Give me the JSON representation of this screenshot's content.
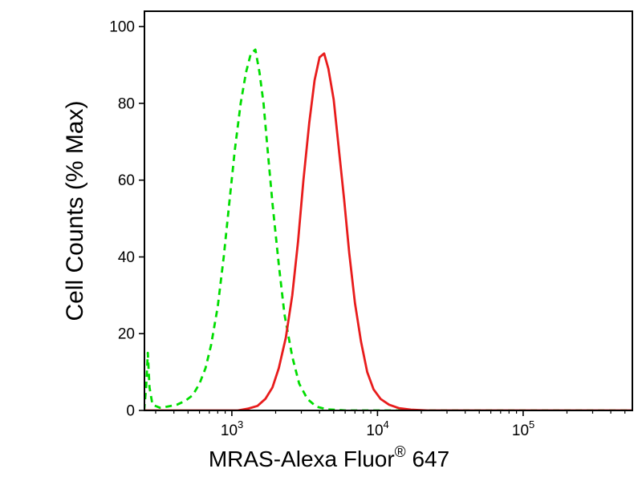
{
  "chart_data": {
    "type": "line",
    "title": "",
    "xlabel": "MRAS-Alexa Fluor® 647",
    "xlabel_parts": {
      "main": "MRAS-Alexa Fluor",
      "sup": "®",
      "suffix": " 647"
    },
    "ylabel": "Cell Counts (% Max)",
    "x_scale": "log",
    "x_range_log10": [
      2.4,
      5.75
    ],
    "ylim": [
      0,
      100
    ],
    "y_ticks": [
      0,
      20,
      40,
      60,
      80,
      100
    ],
    "x_major_ticks": [
      {
        "value": 1000,
        "base": "10",
        "exp": "3"
      },
      {
        "value": 10000,
        "base": "10",
        "exp": "4"
      },
      {
        "value": 100000,
        "base": "10",
        "exp": "5"
      }
    ],
    "grid": false,
    "legend": "none",
    "background": "#ffffff",
    "frame_color": "#000000",
    "series": [
      {
        "name": "green-dashed-curve",
        "color": "#00dd00",
        "style": "dashed",
        "dash": [
          8,
          6
        ],
        "width": 2.8,
        "peak": {
          "x": 1450,
          "y": 94
        },
        "points": [
          [
            250,
            0
          ],
          [
            258,
            6
          ],
          [
            265,
            15
          ],
          [
            272,
            6
          ],
          [
            285,
            1.5
          ],
          [
            320,
            0.7
          ],
          [
            360,
            1
          ],
          [
            420,
            1.5
          ],
          [
            480,
            2.5
          ],
          [
            540,
            4
          ],
          [
            600,
            7
          ],
          [
            660,
            11
          ],
          [
            720,
            17
          ],
          [
            800,
            27
          ],
          [
            880,
            40
          ],
          [
            960,
            54
          ],
          [
            1050,
            68
          ],
          [
            1150,
            80
          ],
          [
            1250,
            88
          ],
          [
            1350,
            93
          ],
          [
            1450,
            94
          ],
          [
            1550,
            88
          ],
          [
            1650,
            80
          ],
          [
            1750,
            69
          ],
          [
            1900,
            54
          ],
          [
            2100,
            38
          ],
          [
            2300,
            25
          ],
          [
            2600,
            14
          ],
          [
            2900,
            7
          ],
          [
            3300,
            3
          ],
          [
            3800,
            1
          ],
          [
            4500,
            0.3
          ],
          [
            6000,
            0
          ],
          [
            560000,
            0
          ]
        ]
      },
      {
        "name": "red-solid-curve",
        "color": "#e81c1c",
        "style": "solid",
        "dash": null,
        "width": 2.8,
        "peak": {
          "x": 4300,
          "y": 93
        },
        "points": [
          [
            250,
            0
          ],
          [
            1100,
            0
          ],
          [
            1300,
            0.5
          ],
          [
            1500,
            1.2
          ],
          [
            1700,
            3
          ],
          [
            1900,
            6
          ],
          [
            2100,
            11
          ],
          [
            2350,
            19
          ],
          [
            2600,
            30
          ],
          [
            2850,
            44
          ],
          [
            3100,
            60
          ],
          [
            3400,
            75
          ],
          [
            3700,
            86
          ],
          [
            4000,
            92
          ],
          [
            4300,
            93
          ],
          [
            4600,
            89
          ],
          [
            5000,
            81
          ],
          [
            5400,
            69
          ],
          [
            5900,
            55
          ],
          [
            6400,
            41
          ],
          [
            7000,
            28
          ],
          [
            7700,
            18
          ],
          [
            8500,
            10
          ],
          [
            9400,
            5.5
          ],
          [
            10500,
            3
          ],
          [
            12000,
            1.5
          ],
          [
            14000,
            0.6
          ],
          [
            17000,
            0.2
          ],
          [
            22000,
            0
          ],
          [
            560000,
            0
          ]
        ]
      }
    ]
  }
}
